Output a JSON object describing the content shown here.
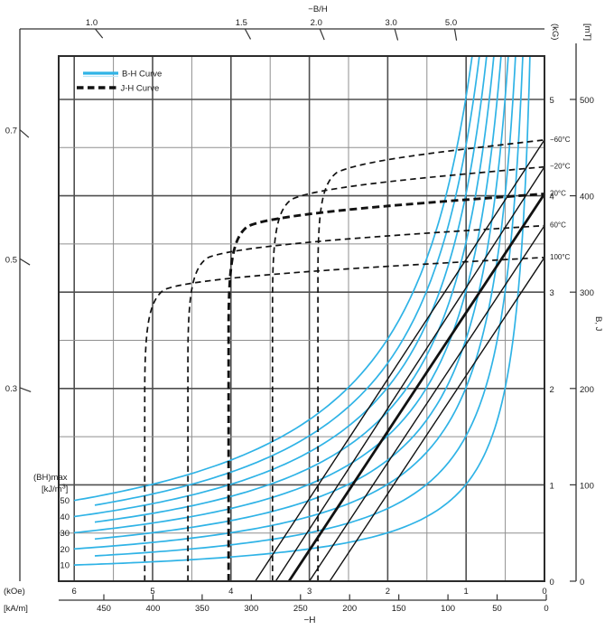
{
  "meta": {
    "description": "Demagnetization curves: B-H and J-H curves versus temperature with (BH)max energy-product contours and permeance coefficient (-B/H) scales"
  },
  "colors": {
    "accent_cyan": "#2FB3E6",
    "accent_cyan_halo": "#BFE6F7",
    "curve_black": "#111111",
    "grid_major": "#4f4f4f",
    "grid_minor": "#8f8f8f",
    "frame": "#2b2b2b",
    "axis_line": "#333333",
    "text": "#1a1a1a"
  },
  "legend": {
    "items": [
      {
        "label": "B-H Curve",
        "style": "solid-cyan"
      },
      {
        "label": "J-H Curve",
        "style": "dashed-black"
      }
    ]
  },
  "chart_data": {
    "type": "line",
    "title": "",
    "grid": "on, 0.5 unit minor / 1.0 unit major",
    "top_axis": {
      "title": "−B/H",
      "ticks": [
        1.0,
        1.5,
        2.0,
        3.0,
        5.0
      ]
    },
    "left_axis": {
      "title": "",
      "ticks": [
        0.7,
        0.5,
        0.3
      ]
    },
    "x_axis": {
      "title": "−H",
      "primary": {
        "unit": "(kOe)",
        "ticks": [
          6,
          5,
          4,
          3,
          2,
          1,
          0
        ],
        "range_kOe": [
          0,
          6.2
        ]
      },
      "secondary": {
        "unit": "[kA/m]",
        "ticks": [
          450,
          400,
          350,
          300,
          250,
          200,
          150,
          100,
          50,
          0
        ]
      }
    },
    "y_axis": {
      "title": "B, J",
      "primary": {
        "unit": "(kG)",
        "ticks": [
          5,
          4,
          3,
          2,
          1,
          0
        ],
        "range_kG": [
          0,
          5.45
        ]
      },
      "secondary": {
        "unit": "[mT]",
        "ticks": [
          500,
          400,
          300,
          200,
          100,
          0
        ]
      }
    },
    "bh_curves": [
      {
        "temp": "−60°C",
        "br_kG": 4.58,
        "h_intercept_kOe": 3.69,
        "bold": false
      },
      {
        "temp": "−20°C",
        "br_kG": 4.3,
        "h_intercept_kOe": 3.43,
        "bold": false
      },
      {
        "temp": "20°C",
        "br_kG": 4.02,
        "h_intercept_kOe": 3.26,
        "bold": true
      },
      {
        "temp": "60°C",
        "br_kG": 3.69,
        "h_intercept_kOe": 3.0,
        "bold": false
      },
      {
        "temp": "100°C",
        "br_kG": 3.36,
        "h_intercept_kOe": 2.74,
        "bold": false
      }
    ],
    "jh_curves": [
      {
        "temp": "−60°C",
        "js_kG": 4.58,
        "hcj_kOe": 2.89,
        "bold": false
      },
      {
        "temp": "−20°C",
        "js_kG": 4.3,
        "hcj_kOe": 3.47,
        "bold": false
      },
      {
        "temp": "20°C",
        "js_kG": 4.02,
        "hcj_kOe": 4.03,
        "bold": true
      },
      {
        "temp": "60°C",
        "js_kG": 3.69,
        "hcj_kOe": 4.55,
        "bold": false
      },
      {
        "temp": "100°C",
        "js_kG": 3.36,
        "hcj_kOe": 5.1,
        "bold": false
      }
    ],
    "bhmax_contours": {
      "label": "(BH)max",
      "unit_prefix": "[kJ/m",
      "unit_sup": "3",
      "unit_suffix": "]",
      "values": [
        50,
        45,
        40,
        35,
        30,
        25,
        20,
        15,
        10
      ],
      "labeled_values": [
        50,
        40,
        30,
        20,
        10
      ]
    }
  }
}
